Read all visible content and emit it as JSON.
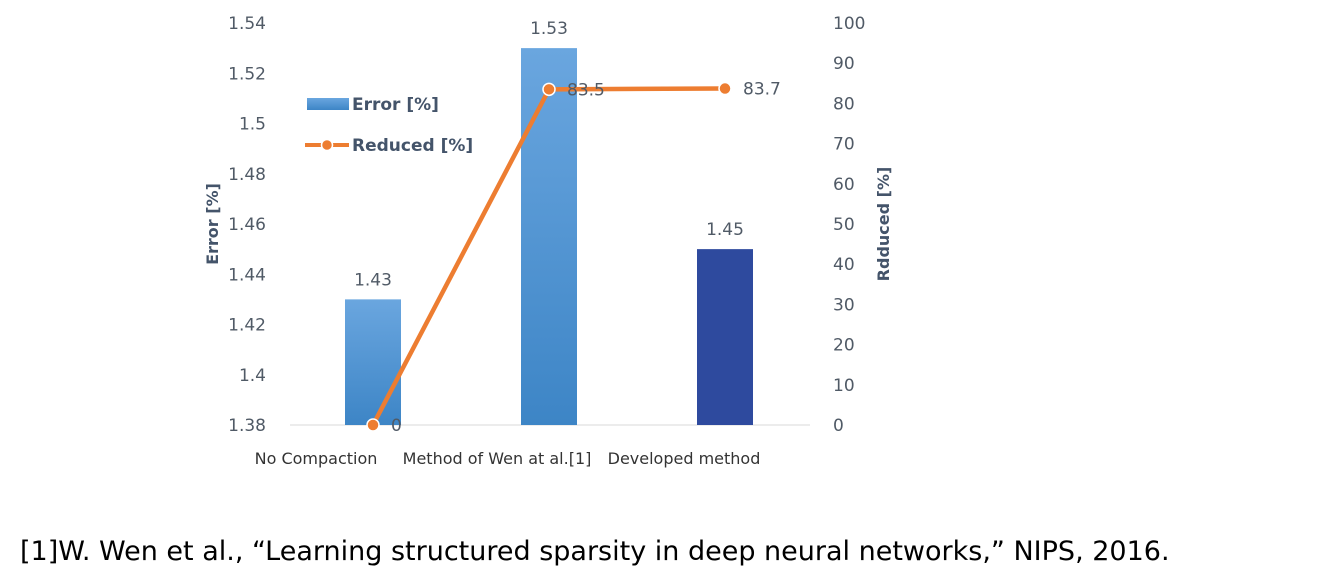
{
  "chart_data": {
    "type": "bar",
    "categories": [
      "No Compaction",
      "Method of Wen at al.[1]",
      "Developed method"
    ],
    "series": [
      {
        "name": "Error [%]",
        "type": "bar",
        "axis": "left",
        "values": [
          1.43,
          1.53,
          1.45
        ],
        "labels": [
          "1.43",
          "1.53",
          "1.45"
        ]
      },
      {
        "name": "Reduced [%]",
        "type": "line",
        "axis": "right",
        "values": [
          0,
          83.5,
          83.7
        ],
        "labels": [
          "0",
          "83.5",
          "83.7"
        ]
      }
    ],
    "y_left": {
      "label": "Error [%]",
      "lim": [
        1.38,
        1.54
      ],
      "ticks": [
        "1.38",
        "1.4",
        "1.42",
        "1.44",
        "1.46",
        "1.48",
        "1.5",
        "1.52",
        "1.54"
      ]
    },
    "y_right": {
      "label": "Rdduced [%]",
      "lim": [
        0,
        100
      ],
      "ticks": [
        "0",
        "10",
        "20",
        "30",
        "40",
        "50",
        "60",
        "70",
        "80",
        "90",
        "100"
      ]
    },
    "grid": false,
    "legend_position": "top-left",
    "colors": {
      "bar_light": "#5b9bd5",
      "bar_dark": "#2e4a9e",
      "line": "#ed7d31"
    }
  },
  "footnote": "[1]W. Wen et al., “Learning structured sparsity in deep neural networks,” NIPS, 2016."
}
